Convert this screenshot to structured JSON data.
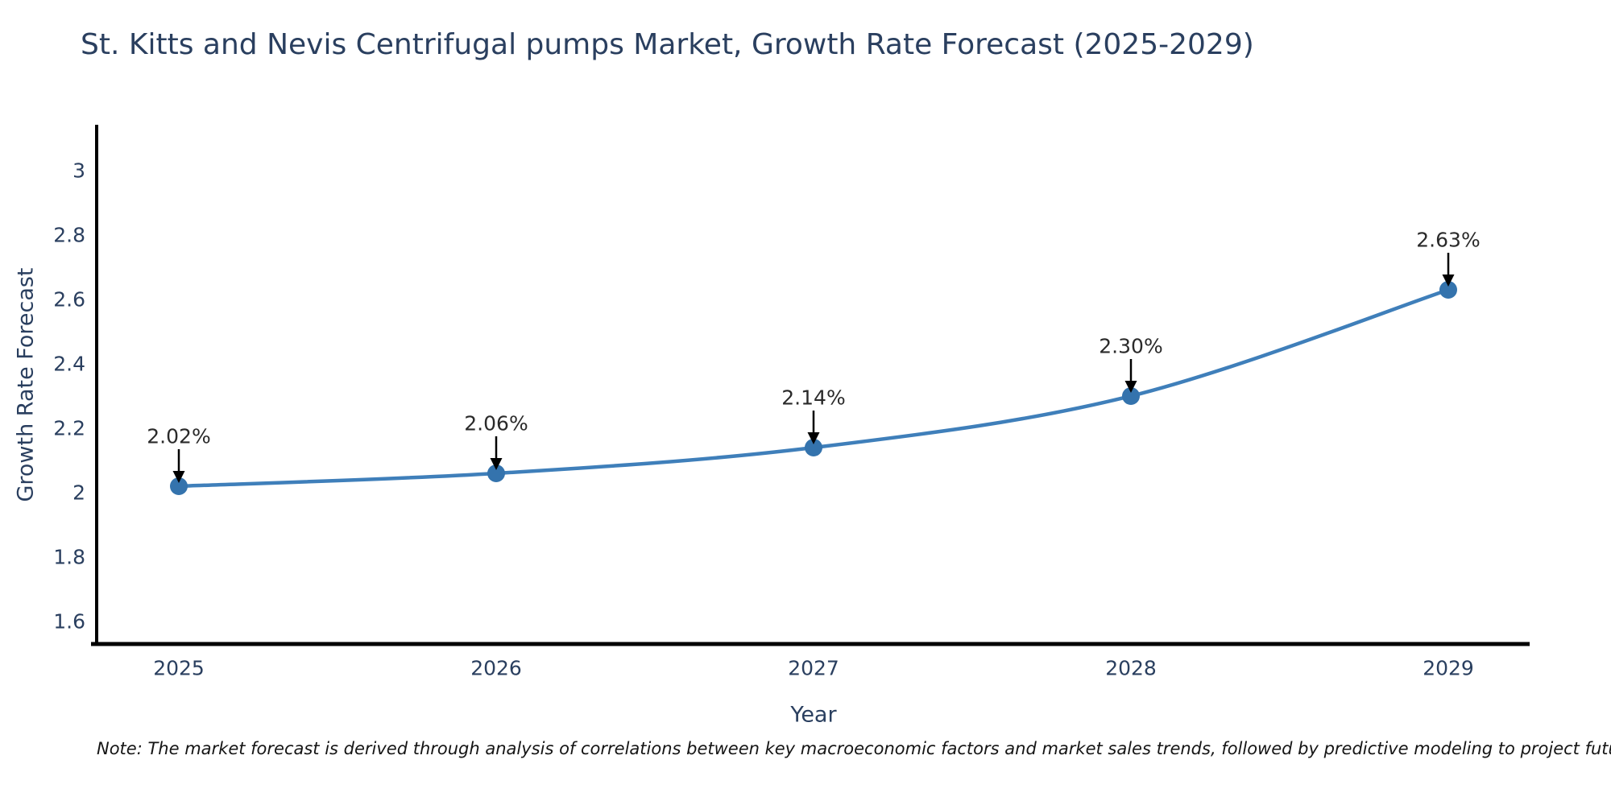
{
  "note": "Note: The market forecast is derived through analysis of correlations between key macroeconomic factors and market sales trends, followed by predictive modeling to project future sales",
  "chart_data": {
    "type": "line",
    "title": "St. Kitts and Nevis Centrifugal pumps Market, Growth Rate Forecast (2025-2029)",
    "xlabel": "Year",
    "ylabel": "Growth Rate Forecast",
    "x": [
      2025,
      2026,
      2027,
      2028,
      2029
    ],
    "values": [
      2.02,
      2.06,
      2.14,
      2.3,
      2.63
    ],
    "point_labels": [
      "2.02%",
      "2.06%",
      "2.14%",
      "2.30%",
      "2.63%"
    ],
    "xticks": [
      "2025",
      "2026",
      "2027",
      "2028",
      "2029"
    ],
    "yticks": [
      1.6,
      1.8,
      2,
      2.2,
      2.4,
      2.6,
      2.8,
      3
    ],
    "xlim": [
      2024.72,
      2029.27
    ],
    "ylim": [
      1.52,
      3.13
    ],
    "grid": false,
    "legend": false,
    "line_shape": "spline",
    "colors": {
      "line": "#3f7fba",
      "marker": "#3473ad",
      "axis": "#000000",
      "tick_text": "#2a3f5f",
      "annotation_text": "#2a2a2a",
      "annotation_arrow": "#000000"
    }
  }
}
